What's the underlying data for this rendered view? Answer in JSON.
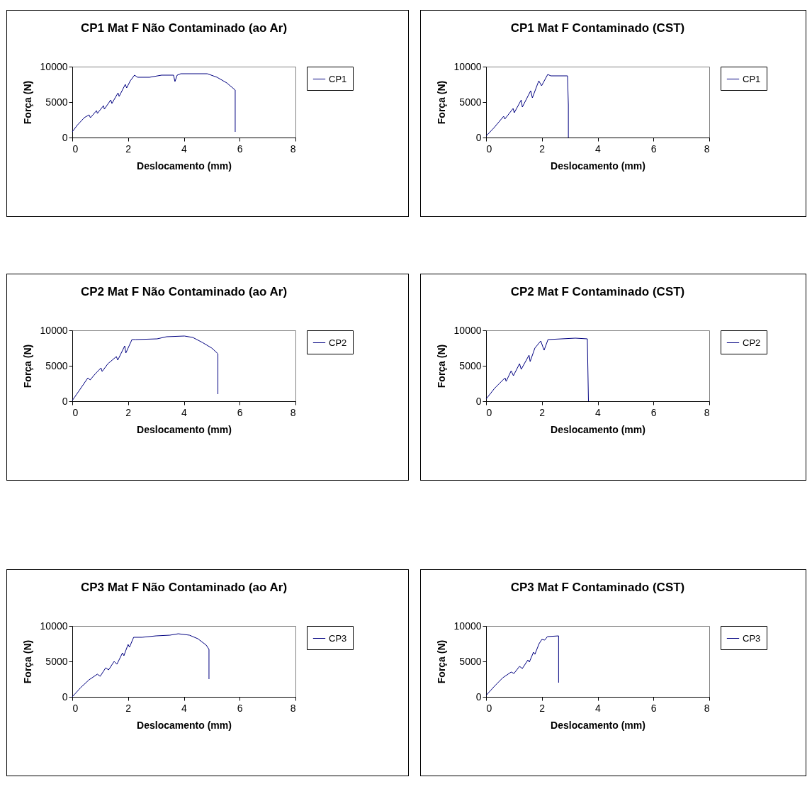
{
  "chart_data": [
    {
      "type": "line",
      "title": "CP1 Mat F Não Contaminado (ao Ar)",
      "xlabel": "Deslocamento (mm)",
      "ylabel": "Força (N)",
      "xlim": [
        0,
        8
      ],
      "xticks": [
        0,
        2,
        4,
        6,
        8
      ],
      "ylim": [
        0,
        10000
      ],
      "yticks": [
        0,
        5000,
        10000
      ],
      "legend": "right",
      "grid": false,
      "x": [
        0,
        0.17,
        0.43,
        0.6,
        0.65,
        0.87,
        0.9,
        1.12,
        1.15,
        1.38,
        1.42,
        1.64,
        1.68,
        1.9,
        1.95,
        2.08,
        2.23,
        2.34,
        2.77,
        3.2,
        3.63,
        3.68,
        3.76,
        3.89,
        4.84,
        5.19,
        5.54,
        5.84,
        5.84
      ],
      "series": [
        {
          "name": "CP1",
          "color": "#000080",
          "values": [
            800,
            1700,
            2800,
            3200,
            2800,
            3800,
            3400,
            4500,
            4000,
            5300,
            4800,
            6300,
            5800,
            7500,
            7000,
            8000,
            8800,
            8500,
            8500,
            8800,
            8800,
            7900,
            8800,
            9000,
            9000,
            8500,
            7700,
            6700,
            800
          ]
        }
      ]
    },
    {
      "type": "line",
      "title": "CP1 Mat F Contaminado (CST)",
      "xlabel": "Deslocamento (mm)",
      "ylabel": "Força (N)",
      "xlim": [
        0,
        8
      ],
      "xticks": [
        0,
        2,
        4,
        6,
        8
      ],
      "ylim": [
        0,
        10000
      ],
      "yticks": [
        0,
        5000,
        10000
      ],
      "legend": "right",
      "grid": false,
      "x": [
        0,
        0.29,
        0.63,
        0.67,
        0.97,
        1.01,
        1.26,
        1.3,
        1.6,
        1.66,
        1.89,
        1.99,
        2.21,
        2.32,
        2.92,
        2.95,
        2.95
      ],
      "series": [
        {
          "name": "CP1",
          "color": "#000080",
          "values": [
            200,
            1400,
            3000,
            2600,
            4100,
            3500,
            5300,
            4300,
            6600,
            5600,
            8000,
            7300,
            8900,
            8700,
            8700,
            4600,
            0
          ]
        }
      ]
    },
    {
      "type": "line",
      "title": "CP2 Mat F Não Contaminado (ao Ar)",
      "xlabel": "Deslocamento (mm)",
      "ylabel": "Força (N)",
      "xlim": [
        0,
        8
      ],
      "xticks": [
        0,
        2,
        4,
        6,
        8
      ],
      "ylim": [
        0,
        10000
      ],
      "yticks": [
        0,
        5000,
        10000
      ],
      "legend": "right",
      "grid": false,
      "x": [
        0,
        0.3,
        0.56,
        0.64,
        0.81,
        1.03,
        1.07,
        1.28,
        1.58,
        1.63,
        1.88,
        1.92,
        2.14,
        2.27,
        3.04,
        3.38,
        4.02,
        4.32,
        4.66,
        5.0,
        5.22,
        5.22
      ],
      "series": [
        {
          "name": "CP2",
          "color": "#000080",
          "values": [
            100,
            1800,
            3300,
            3000,
            3800,
            4700,
            4200,
            5300,
            6300,
            5800,
            7800,
            6800,
            8700,
            8700,
            8800,
            9100,
            9200,
            9000,
            8300,
            7500,
            6700,
            1000
          ]
        }
      ]
    },
    {
      "type": "line",
      "title": "CP2 Mat F Contaminado (CST)",
      "xlabel": "Deslocamento (mm)",
      "ylabel": "Força (N)",
      "xlim": [
        0,
        8
      ],
      "xticks": [
        0,
        2,
        4,
        6,
        8
      ],
      "ylim": [
        0,
        10000
      ],
      "yticks": [
        0,
        5000,
        10000
      ],
      "legend": "right",
      "grid": false,
      "x": [
        0,
        0.3,
        0.68,
        0.72,
        0.9,
        0.98,
        1.2,
        1.26,
        1.54,
        1.58,
        1.75,
        1.96,
        2.08,
        2.22,
        3.2,
        3.63,
        3.67
      ],
      "series": [
        {
          "name": "CP2",
          "color": "#000080",
          "values": [
            300,
            1800,
            3300,
            2800,
            4300,
            3600,
            5300,
            4500,
            6500,
            5600,
            7500,
            8500,
            7200,
            8700,
            8900,
            8800,
            0
          ]
        }
      ]
    },
    {
      "type": "line",
      "title": "CP3 Mat F Não Contaminado (ao Ar)",
      "xlabel": "Deslocamento (mm)",
      "ylabel": "Força (N)",
      "xlim": [
        0,
        8
      ],
      "xticks": [
        0,
        2,
        4,
        6,
        8
      ],
      "ylim": [
        0,
        10000
      ],
      "yticks": [
        0,
        5000,
        10000
      ],
      "legend": "right",
      "grid": false,
      "x": [
        0,
        0.3,
        0.6,
        0.9,
        1.0,
        1.2,
        1.3,
        1.5,
        1.6,
        1.8,
        1.85,
        2.0,
        2.05,
        2.2,
        2.5,
        3.0,
        3.5,
        3.8,
        4.2,
        4.5,
        4.8,
        4.9,
        4.9
      ],
      "series": [
        {
          "name": "CP3",
          "color": "#000080",
          "values": [
            0,
            1300,
            2400,
            3200,
            2900,
            4100,
            3800,
            5000,
            4600,
            6200,
            5800,
            7400,
            7000,
            8400,
            8400,
            8600,
            8700,
            8900,
            8700,
            8200,
            7300,
            6700,
            2500
          ]
        }
      ]
    },
    {
      "type": "line",
      "title": "CP3 Mat F Contaminado (CST)",
      "xlabel": "Deslocamento (mm)",
      "ylabel": "Força (N)",
      "xlim": [
        0,
        8
      ],
      "xticks": [
        0,
        2,
        4,
        6,
        8
      ],
      "ylim": [
        0,
        10000
      ],
      "yticks": [
        0,
        5000,
        10000
      ],
      "legend": "right",
      "grid": false,
      "x": [
        0,
        0.3,
        0.6,
        0.9,
        1.0,
        1.2,
        1.3,
        1.5,
        1.55,
        1.7,
        1.75,
        1.9,
        2.0,
        2.1,
        2.2,
        2.6,
        2.6
      ],
      "series": [
        {
          "name": "CP3",
          "color": "#000080",
          "values": [
            200,
            1500,
            2700,
            3500,
            3300,
            4300,
            4000,
            5200,
            4900,
            6300,
            6000,
            7500,
            8100,
            8000,
            8500,
            8600,
            2000
          ]
        }
      ]
    }
  ]
}
